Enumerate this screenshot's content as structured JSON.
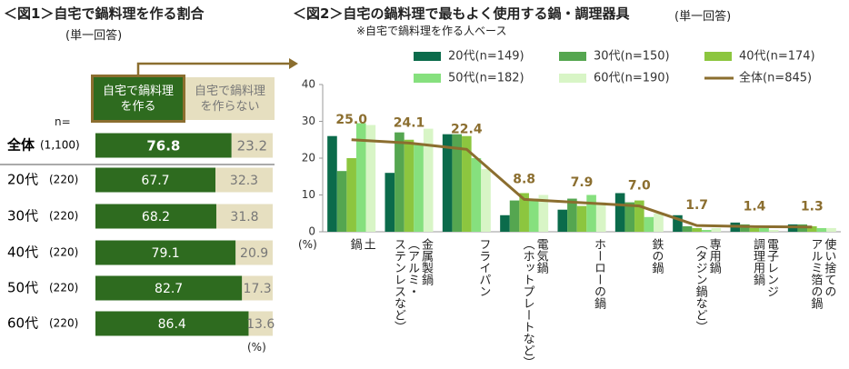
{
  "chart_data": [
    {
      "type": "stacked-hbar",
      "title": "＜図1＞自宅で鍋料理を作る割合",
      "subtitle": "(単一回答)",
      "n_label": "n=",
      "unit_label": "(%)",
      "categories": [
        "全体",
        "20代",
        "30代",
        "40代",
        "50代",
        "60代"
      ],
      "n": [
        "(1,100)",
        "(220)",
        "(220)",
        "(220)",
        "(220)",
        "(220)"
      ],
      "xlim": [
        0,
        100
      ],
      "series": [
        {
          "name": "自宅で鍋料理を作る",
          "color": "#2e6b1f",
          "values": [
            76.8,
            67.7,
            68.2,
            79.1,
            82.7,
            86.4
          ]
        },
        {
          "name": "自宅で鍋料理を作らない",
          "color": "#e6dfc0",
          "values": [
            23.2,
            32.3,
            31.8,
            20.9,
            17.3,
            13.6
          ]
        }
      ]
    },
    {
      "type": "bar-line",
      "title": "＜図2＞自宅の鍋料理で最もよく使用する鍋・調理器具",
      "subtitle": "(単一回答)",
      "note": "※自宅で鍋料理を作る人ベース",
      "y_label": "(%)",
      "categories": [
        "土\n鍋",
        "金属製鍋\n（アルミ・\nステンレスなど）",
        "フライパン",
        "電気鍋\n（ホットプレートなど）",
        "ホーローの鍋",
        "鉄の鍋",
        "専用鍋\n（タジン鍋など）",
        "電子レンジ\n調理用鍋",
        "使い捨ての\nアルミ箔の鍋"
      ],
      "ylim": [
        0,
        40
      ],
      "yticks": [
        0,
        10,
        20,
        30,
        40
      ],
      "series": [
        {
          "name": "20代(n=149)",
          "color": "#0b6b4b",
          "values": [
            26,
            16,
            26.5,
            4.5,
            6,
            10.5,
            4.5,
            2.5,
            2
          ]
        },
        {
          "name": "30代(n=150)",
          "color": "#55a650",
          "values": [
            16.5,
            27,
            26.5,
            8.5,
            9,
            8,
            1.5,
            2,
            2
          ]
        },
        {
          "name": "40代(n=174)",
          "color": "#8cc63f",
          "values": [
            20,
            25,
            26,
            10.5,
            7,
            8.5,
            1,
            1,
            1.5
          ]
        },
        {
          "name": "50代(n=182)",
          "color": "#86e07e",
          "values": [
            29.5,
            24,
            20,
            9,
            10,
            4,
            0.5,
            1,
            1
          ]
        },
        {
          "name": "60代(n=190)",
          "color": "#d8f5c6",
          "values": [
            29,
            28,
            17,
            10,
            8,
            5,
            1,
            0.5,
            1
          ]
        },
        {
          "name": "全体(n=845)",
          "color": "#8b6e2f",
          "type": "line",
          "values": [
            25.0,
            24.1,
            22.4,
            8.8,
            7.9,
            7.0,
            1.7,
            1.4,
            1.3
          ],
          "value_labels": [
            "25.0",
            "24.1",
            "22.4",
            "8.8",
            "7.9",
            "7.0",
            "1.7",
            "1.4",
            "1.3"
          ]
        }
      ]
    }
  ]
}
